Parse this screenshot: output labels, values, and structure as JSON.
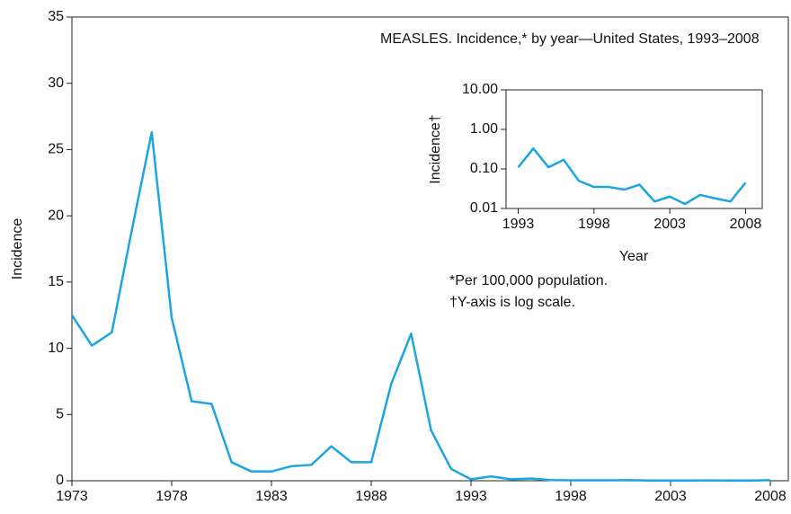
{
  "chart_data": [
    {
      "type": "line",
      "ylabel": "Incidence",
      "x": [
        1973,
        1974,
        1975,
        1976,
        1977,
        1978,
        1979,
        1980,
        1981,
        1982,
        1983,
        1984,
        1985,
        1986,
        1987,
        1988,
        1989,
        1990,
        1991,
        1992,
        1993,
        1994,
        1995,
        1996,
        1997,
        1998,
        1999,
        2000,
        2001,
        2002,
        2003,
        2004,
        2005,
        2006,
        2007,
        2008
      ],
      "series": [
        {
          "color": "#1ba6e1",
          "values": [
            12.5,
            10.2,
            11.2,
            18.9,
            26.3,
            12.3,
            6.0,
            5.8,
            1.4,
            0.7,
            0.7,
            1.1,
            1.2,
            2.6,
            1.4,
            1.4,
            7.3,
            11.1,
            3.8,
            0.9,
            0.11,
            0.33,
            0.11,
            0.17,
            0.05,
            0.035,
            0.035,
            0.03,
            0.04,
            0.015,
            0.02,
            0.013,
            0.022,
            0.018,
            0.015,
            0.045
          ]
        }
      ],
      "xlim": [
        1973,
        2008.9
      ],
      "xticks": [
        1973,
        1978,
        1983,
        1988,
        1993,
        1998,
        2003,
        2008
      ],
      "ylim": [
        0,
        35
      ],
      "yticks": [
        0,
        5,
        10,
        15,
        20,
        25,
        30,
        35
      ],
      "log_y": false
    },
    {
      "type": "line",
      "title": "MEASLES. Incidence,* by year—United States, 1993–2008",
      "xlabel": "Year",
      "ylabel": "Incidence†",
      "annotations": [
        "*Per 100,000 population.",
        "†Y-axis is log scale."
      ],
      "x": [
        1993,
        1994,
        1995,
        1996,
        1997,
        1998,
        1999,
        2000,
        2001,
        2002,
        2003,
        2004,
        2005,
        2006,
        2007,
        2008
      ],
      "series": [
        {
          "color": "#1ba6e1",
          "values": [
            0.11,
            0.33,
            0.11,
            0.17,
            0.05,
            0.035,
            0.035,
            0.03,
            0.04,
            0.015,
            0.02,
            0.013,
            0.022,
            0.018,
            0.015,
            0.045
          ]
        }
      ],
      "xlim": [
        1992.2,
        2009.1
      ],
      "xticks": [
        1993,
        1998,
        2003,
        2008
      ],
      "ylim": [
        0.01,
        10
      ],
      "log_y": true,
      "yticks": [
        {
          "value": 0.01,
          "label": "0.01"
        },
        {
          "value": 0.1,
          "label": "0.10"
        },
        {
          "value": 1,
          "label": "1.00"
        },
        {
          "value": 10,
          "label": "10.00"
        }
      ]
    }
  ]
}
